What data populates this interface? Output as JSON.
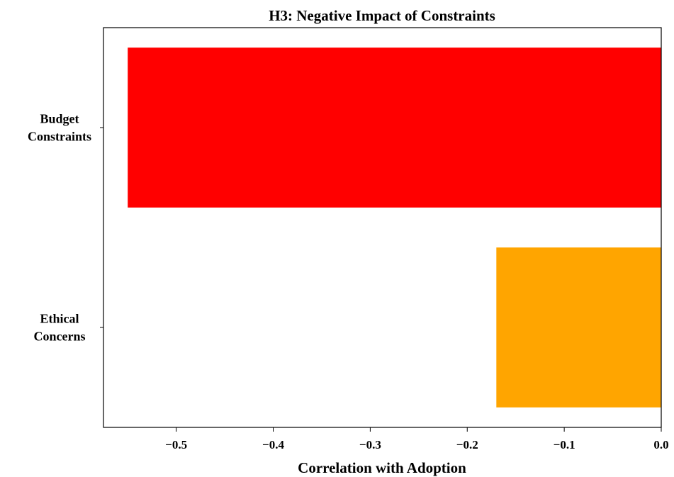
{
  "chart_data": {
    "type": "bar",
    "orientation": "horizontal",
    "title": "H3: Negative Impact of Constraints",
    "xlabel": "Correlation with Adoption",
    "ylabel": "",
    "categories": [
      [
        "Budget",
        "Constraints"
      ],
      [
        "Ethical",
        "Concerns"
      ]
    ],
    "values": [
      -0.55,
      -0.17
    ],
    "colors": [
      "#ff0000",
      "#ffa500"
    ],
    "xlim": [
      -0.575,
      0.0
    ],
    "xticks": [
      -0.5,
      -0.4,
      -0.3,
      -0.2,
      -0.1,
      0.0
    ],
    "xtick_labels": [
      "−0.5",
      "−0.4",
      "−0.3",
      "−0.2",
      "−0.1",
      "0.0"
    ],
    "grid": false,
    "legend": "none"
  }
}
